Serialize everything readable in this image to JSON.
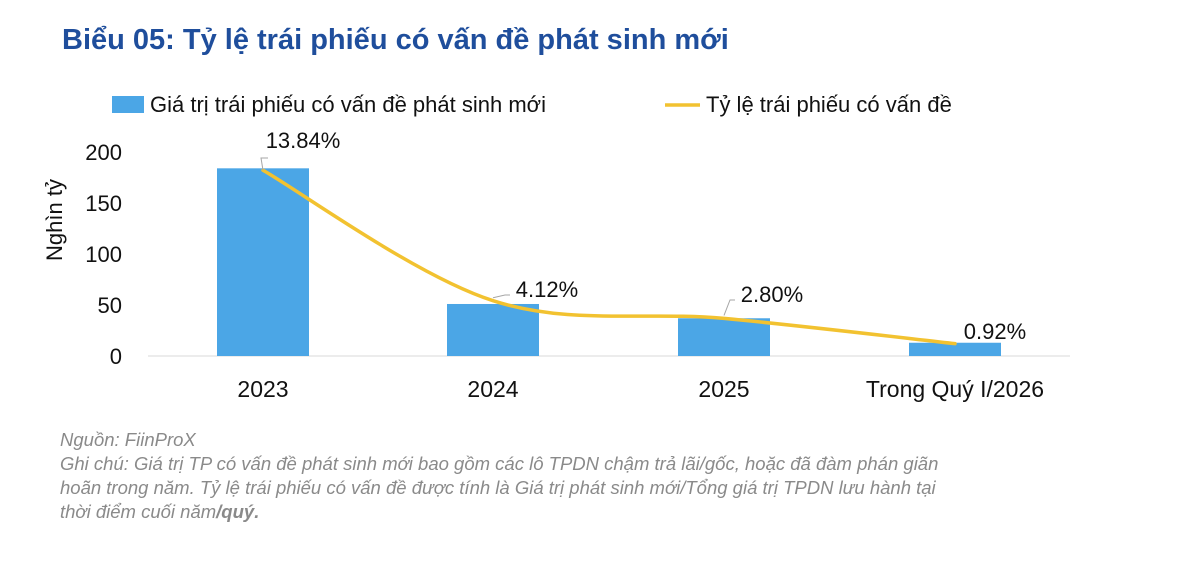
{
  "chart_data": {
    "type": "bar",
    "title": "Biểu 05: Tỷ lệ trái phiếu có vấn đề phát sinh mới",
    "ylabel": "Nghìn tỷ",
    "ylim": [
      0,
      200
    ],
    "yticks": [
      0,
      50,
      100,
      150,
      200
    ],
    "categories": [
      "2023",
      "2024",
      "2025",
      "Trong Quý I/2026"
    ],
    "series": [
      {
        "name": "Giá trị trái phiếu có vấn đề phát sinh mới",
        "type": "bar",
        "color": "#4BA6E6",
        "values": [
          184,
          51,
          37,
          13
        ]
      },
      {
        "name": "Tỷ lệ trái phiếu có vấn đề",
        "type": "line",
        "color": "#F2C230",
        "values": [
          13.84,
          4.12,
          2.8,
          0.92
        ],
        "labels": [
          "13.84%",
          "4.12%",
          "2.80%",
          "0.92%"
        ]
      }
    ],
    "legend": "top",
    "grid": false
  },
  "notes": {
    "source_prefix": "Nguồn: ",
    "source_name": "FiinProX",
    "line1": "Ghi chú: Giá trị TP có vấn đề phát sinh mới bao gồm các lô TPDN chậm trả lãi/gốc, hoặc đã đàm phán giãn",
    "line2": "hoãn trong năm. Tỷ lệ trái phiếu có vấn đề được tính là Giá trị phát sinh mới/Tổng giá trị TPDN lưu hành tại",
    "line3_prefix": "thời điểm cuối năm",
    "line3_bold": "/quý."
  }
}
